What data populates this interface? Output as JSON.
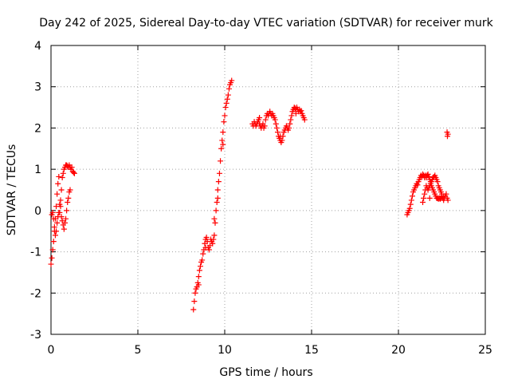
{
  "chart_data": {
    "type": "scatter",
    "title": "Day 242 of 2025, Sidereal Day-to-day VTEC variation (SDTVAR) for receiver murk",
    "xlabel": "GPS time / hours",
    "ylabel": "SDTVAR / TECUs",
    "xlim": [
      0,
      25
    ],
    "ylim": [
      -3,
      4
    ],
    "xticks": [
      0,
      5,
      10,
      15,
      20,
      25
    ],
    "yticks": [
      -3,
      -2,
      -1,
      0,
      1,
      2,
      3,
      4
    ],
    "grid": true,
    "marker": "+",
    "marker_color": "#ff0000",
    "series": [
      {
        "name": "SDTVAR",
        "points": [
          [
            0.0,
            -1.3
          ],
          [
            0.05,
            -1.15
          ],
          [
            0.1,
            -0.95
          ],
          [
            0.15,
            -0.75
          ],
          [
            0.2,
            -0.5
          ],
          [
            0.25,
            -0.2
          ],
          [
            0.3,
            0.1
          ],
          [
            0.35,
            0.4
          ],
          [
            0.4,
            0.65
          ],
          [
            0.45,
            0.82
          ],
          [
            0.05,
            -0.1
          ],
          [
            0.1,
            -0.05
          ],
          [
            0.15,
            -0.2
          ],
          [
            0.2,
            -0.4
          ],
          [
            0.25,
            -0.6
          ],
          [
            0.3,
            -0.5
          ],
          [
            0.35,
            -0.3
          ],
          [
            0.4,
            -0.15
          ],
          [
            0.45,
            -0.05
          ],
          [
            0.5,
            0.15
          ],
          [
            0.55,
            0.1
          ],
          [
            0.6,
            -0.15
          ],
          [
            0.65,
            -0.25
          ],
          [
            0.7,
            -0.35
          ],
          [
            0.75,
            -0.45
          ],
          [
            0.8,
            -0.3
          ],
          [
            0.85,
            -0.2
          ],
          [
            0.9,
            0.0
          ],
          [
            0.95,
            0.2
          ],
          [
            1.0,
            0.3
          ],
          [
            1.05,
            0.45
          ],
          [
            1.1,
            0.5
          ],
          [
            0.55,
            0.25
          ],
          [
            0.6,
            0.5
          ],
          [
            0.65,
            0.8
          ],
          [
            0.7,
            0.9
          ],
          [
            0.75,
            1.0
          ],
          [
            0.8,
            1.05
          ],
          [
            0.85,
            1.1
          ],
          [
            0.9,
            1.1
          ],
          [
            0.95,
            1.08
          ],
          [
            1.0,
            1.05
          ],
          [
            1.05,
            1.1
          ],
          [
            1.1,
            1.05
          ],
          [
            1.15,
            1.0
          ],
          [
            1.2,
            1.05
          ],
          [
            1.25,
            0.95
          ],
          [
            1.3,
            0.92
          ],
          [
            1.35,
            0.9
          ],
          [
            0.5,
            -0.05
          ],
          [
            8.2,
            -2.4
          ],
          [
            8.25,
            -2.2
          ],
          [
            8.3,
            -2.0
          ],
          [
            8.35,
            -1.9
          ],
          [
            8.4,
            -1.85
          ],
          [
            8.45,
            -1.75
          ],
          [
            8.5,
            -1.6
          ],
          [
            8.55,
            -1.45
          ],
          [
            8.6,
            -1.35
          ],
          [
            8.65,
            -1.25
          ],
          [
            8.7,
            -1.2
          ],
          [
            8.75,
            -1.05
          ],
          [
            8.8,
            -0.95
          ],
          [
            8.85,
            -0.8
          ],
          [
            8.9,
            -0.7
          ],
          [
            8.95,
            -0.65
          ],
          [
            9.0,
            -0.75
          ],
          [
            9.05,
            -0.9
          ],
          [
            9.1,
            -0.95
          ],
          [
            9.15,
            -0.85
          ],
          [
            9.2,
            -0.7
          ],
          [
            9.25,
            -0.75
          ],
          [
            9.3,
            -0.8
          ],
          [
            9.35,
            -0.7
          ],
          [
            9.4,
            -0.6
          ],
          [
            9.45,
            -0.3
          ],
          [
            9.5,
            0.0
          ],
          [
            9.55,
            0.2
          ],
          [
            9.6,
            0.5
          ],
          [
            9.65,
            0.7
          ],
          [
            9.7,
            0.9
          ],
          [
            9.75,
            1.2
          ],
          [
            9.8,
            1.5
          ],
          [
            9.85,
            1.7
          ],
          [
            9.9,
            1.9
          ],
          [
            9.95,
            2.15
          ],
          [
            10.0,
            2.3
          ],
          [
            10.05,
            2.5
          ],
          [
            10.1,
            2.6
          ],
          [
            10.15,
            2.7
          ],
          [
            10.2,
            2.8
          ],
          [
            10.25,
            2.95
          ],
          [
            10.3,
            3.05
          ],
          [
            10.35,
            3.1
          ],
          [
            10.4,
            3.15
          ],
          [
            9.9,
            1.6
          ],
          [
            9.6,
            0.3
          ],
          [
            9.4,
            -0.2
          ],
          [
            8.9,
            -0.9
          ],
          [
            8.5,
            -1.8
          ],
          [
            11.6,
            2.1
          ],
          [
            11.65,
            2.05
          ],
          [
            11.7,
            2.15
          ],
          [
            11.75,
            2.1
          ],
          [
            11.8,
            2.05
          ],
          [
            11.85,
            2.1
          ],
          [
            11.9,
            2.15
          ],
          [
            11.95,
            2.2
          ],
          [
            12.0,
            2.1
          ],
          [
            12.05,
            2.05
          ],
          [
            12.1,
            2.0
          ],
          [
            12.15,
            2.05
          ],
          [
            12.2,
            2.1
          ],
          [
            12.25,
            2.0
          ],
          [
            12.3,
            2.05
          ],
          [
            12.35,
            2.2
          ],
          [
            12.4,
            2.3
          ],
          [
            12.45,
            2.35
          ],
          [
            12.5,
            2.3
          ],
          [
            12.55,
            2.35
          ],
          [
            12.6,
            2.4
          ],
          [
            12.65,
            2.35
          ],
          [
            12.7,
            2.3
          ],
          [
            12.75,
            2.35
          ],
          [
            12.8,
            2.3
          ],
          [
            12.85,
            2.25
          ],
          [
            12.9,
            2.2
          ],
          [
            12.95,
            2.1
          ],
          [
            13.0,
            2.0
          ],
          [
            13.05,
            1.9
          ],
          [
            13.1,
            1.8
          ],
          [
            13.15,
            1.75
          ],
          [
            13.2,
            1.7
          ],
          [
            13.25,
            1.65
          ],
          [
            13.3,
            1.7
          ],
          [
            13.35,
            1.8
          ],
          [
            13.4,
            1.9
          ],
          [
            13.45,
            1.95
          ],
          [
            13.5,
            2.0
          ],
          [
            13.55,
            2.05
          ],
          [
            13.6,
            2.0
          ],
          [
            13.65,
            1.95
          ],
          [
            13.7,
            2.0
          ],
          [
            13.75,
            2.1
          ],
          [
            13.8,
            2.2
          ],
          [
            13.85,
            2.3
          ],
          [
            13.9,
            2.4
          ],
          [
            13.95,
            2.45
          ],
          [
            14.0,
            2.5
          ],
          [
            14.05,
            2.48
          ],
          [
            14.1,
            2.45
          ],
          [
            14.15,
            2.5
          ],
          [
            14.2,
            2.45
          ],
          [
            14.25,
            2.4
          ],
          [
            14.3,
            2.45
          ],
          [
            14.35,
            2.4
          ],
          [
            14.4,
            2.42
          ],
          [
            14.45,
            2.35
          ],
          [
            14.5,
            2.3
          ],
          [
            14.55,
            2.25
          ],
          [
            14.6,
            2.2
          ],
          [
            12.0,
            2.25
          ],
          [
            13.2,
            1.8
          ],
          [
            14.1,
            2.35
          ],
          [
            20.5,
            -0.1
          ],
          [
            20.55,
            -0.05
          ],
          [
            20.6,
            0.0
          ],
          [
            20.65,
            0.05
          ],
          [
            20.7,
            0.15
          ],
          [
            20.75,
            0.25
          ],
          [
            20.8,
            0.35
          ],
          [
            20.85,
            0.45
          ],
          [
            20.9,
            0.5
          ],
          [
            20.95,
            0.55
          ],
          [
            21.0,
            0.6
          ],
          [
            21.05,
            0.65
          ],
          [
            21.1,
            0.62
          ],
          [
            21.15,
            0.7
          ],
          [
            21.2,
            0.75
          ],
          [
            21.25,
            0.8
          ],
          [
            21.3,
            0.85
          ],
          [
            21.35,
            0.82
          ],
          [
            21.4,
            0.88
          ],
          [
            21.45,
            0.85
          ],
          [
            21.5,
            0.8
          ],
          [
            21.55,
            0.85
          ],
          [
            21.6,
            0.8
          ],
          [
            21.65,
            0.85
          ],
          [
            21.7,
            0.88
          ],
          [
            21.75,
            0.82
          ],
          [
            21.8,
            0.75
          ],
          [
            21.85,
            0.7
          ],
          [
            21.9,
            0.6
          ],
          [
            21.95,
            0.55
          ],
          [
            22.0,
            0.5
          ],
          [
            22.05,
            0.45
          ],
          [
            22.1,
            0.4
          ],
          [
            22.15,
            0.35
          ],
          [
            22.2,
            0.3
          ],
          [
            22.25,
            0.3
          ],
          [
            22.3,
            0.28
          ],
          [
            22.35,
            0.3
          ],
          [
            22.4,
            0.28
          ],
          [
            22.45,
            0.3
          ],
          [
            22.5,
            0.35
          ],
          [
            22.55,
            0.3
          ],
          [
            22.6,
            0.25
          ],
          [
            22.65,
            0.3
          ],
          [
            22.7,
            0.35
          ],
          [
            22.75,
            0.4
          ],
          [
            22.8,
            0.3
          ],
          [
            22.85,
            0.25
          ],
          [
            21.4,
            0.2
          ],
          [
            21.45,
            0.3
          ],
          [
            21.5,
            0.4
          ],
          [
            21.55,
            0.5
          ],
          [
            21.6,
            0.6
          ],
          [
            21.65,
            0.55
          ],
          [
            21.7,
            0.5
          ],
          [
            21.75,
            0.55
          ],
          [
            21.8,
            0.6
          ],
          [
            21.85,
            0.65
          ],
          [
            21.9,
            0.7
          ],
          [
            21.95,
            0.75
          ],
          [
            22.0,
            0.8
          ],
          [
            22.05,
            0.82
          ],
          [
            22.1,
            0.85
          ],
          [
            22.15,
            0.8
          ],
          [
            22.2,
            0.75
          ],
          [
            22.25,
            0.7
          ],
          [
            22.3,
            0.6
          ],
          [
            22.35,
            0.55
          ],
          [
            22.4,
            0.5
          ],
          [
            22.45,
            0.45
          ],
          [
            22.5,
            0.4
          ],
          [
            21.8,
            0.3
          ],
          [
            22.6,
            0.35
          ],
          [
            22.8,
            1.9
          ],
          [
            22.85,
            1.85
          ],
          [
            22.82,
            1.8
          ]
        ]
      }
    ]
  }
}
